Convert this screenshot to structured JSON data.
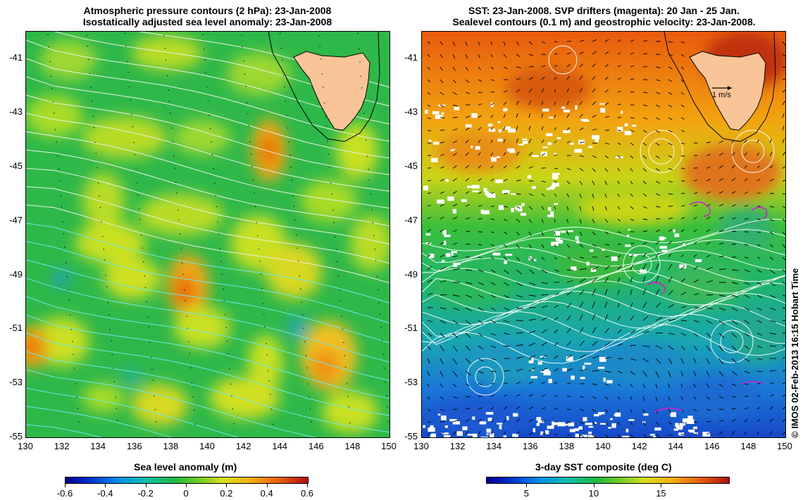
{
  "left_panel": {
    "title_line1": "Atmospheric pressure contours (2 hPa): 23-Jan-2008",
    "title_line2": "Isostatically adjusted sea level anomaly: 23-Jan-2008",
    "colorbar_label": "Sea level anomaly (m)",
    "colorbar_ticks": [
      "-0.6",
      "-0.4",
      "-0.2",
      "0",
      "0.2",
      "0.4",
      "0.6"
    ],
    "colorbar_range": [
      -0.6,
      0.6
    ]
  },
  "right_panel": {
    "title_line1": "SST: 23-Jan-2008. SVP drifters (magenta): 20 Jan - 25 Jan.",
    "title_line2": "Sealevel contours (0.1 m) and geostrophic velocity: 23-Jan-2008.",
    "colorbar_label": "3-day SST composite (deg C)",
    "colorbar_ticks": [
      "5",
      "10",
      "15"
    ],
    "colorbar_range": [
      2,
      20
    ],
    "velocity_scale_label": "1 m/s"
  },
  "axes": {
    "lat_ticks": [
      "-41",
      "-43",
      "-45",
      "-47",
      "-49",
      "-51",
      "-53",
      "-55"
    ],
    "lon_ticks": [
      "130",
      "132",
      "134",
      "136",
      "138",
      "140",
      "142",
      "144",
      "146",
      "148",
      "150"
    ],
    "lat_range": [
      -55,
      -40
    ],
    "lon_range": [
      130,
      150
    ]
  },
  "credit": "© IMOS 02-Feb-2013 16:15 Hobart Time",
  "colors": {
    "land": "#f9c497",
    "slp_low": "#00008b",
    "slp_mid": "#2bb34a",
    "slp_high": "#c0241c",
    "sst_warm": "#d84a10",
    "sst_cool": "#1a6bd8",
    "drifter": "#d020d0"
  }
}
